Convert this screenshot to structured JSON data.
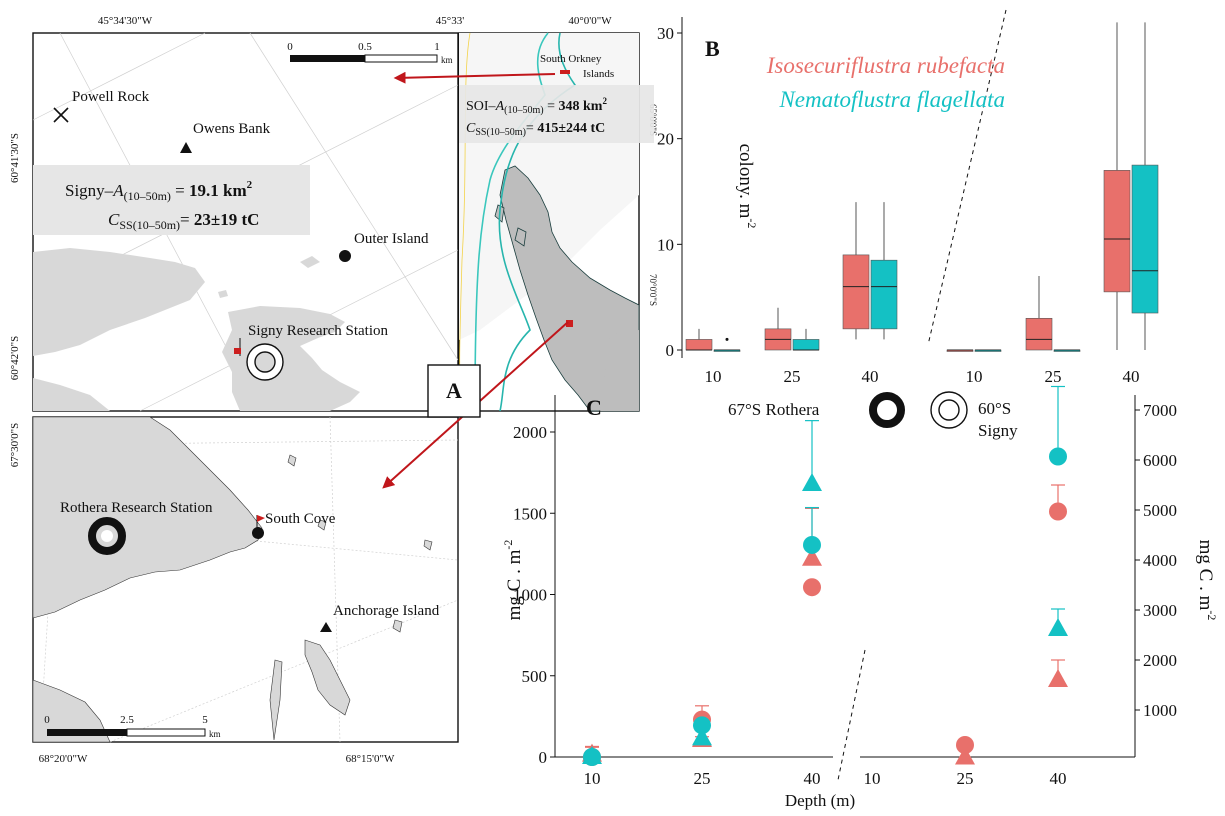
{
  "panel_labels": {
    "a": "A",
    "b": "B",
    "c": "C"
  },
  "colors": {
    "rubefacta": "#e8706b",
    "flagellata": "#14c1c4",
    "land": "#d8d8d8",
    "arrow": "#c0161b"
  },
  "map_signy": {
    "top_lon_left": "45°34'30\"W",
    "top_lon_right": "45°33'",
    "lat_upper": "60°41'30\"S",
    "lat_lower": "60°42'0\"S",
    "scalebar": {
      "ticks": [
        "0",
        "0.5",
        "1"
      ],
      "unit": "km"
    },
    "places": {
      "powell_rock": "Powell Rock",
      "owens_bank": "Owens Bank",
      "outer_island": "Outer Island",
      "signy_station": "Signy Research Station"
    },
    "info_box": {
      "area_prefix": "Signy–",
      "area_var": "A",
      "area_sub": "(10–50m)",
      "area_eq": " = ",
      "area_value": "19.1 km",
      "area_sup": "2",
      "carbon_var": "C",
      "carbon_sub": "SS(10–50m)",
      "carbon_eq": "= ",
      "carbon_value": "23±19 tC"
    }
  },
  "map_inset": {
    "top_lon": "40°0'0\"W",
    "lat_upper": "65°0'0\"S",
    "lat_lower": "70°0'0\"S",
    "south_orkney": [
      "South Orkney",
      "Islands"
    ],
    "info_box": {
      "area_prefix": "SOI–",
      "area_var": "A",
      "area_sub": "(10–50m)",
      "area_eq": " = ",
      "area_value": "348 km",
      "area_sup": "2",
      "carbon_var": "C",
      "carbon_sub": "SS(10–50m)",
      "carbon_eq": "= ",
      "carbon_value": "415±244 tC"
    }
  },
  "map_rothera": {
    "lat_label": "67°30'0\"S",
    "bottom_lon_left": "68°20'0\"W",
    "bottom_lon_right": "68°15'0\"W",
    "scalebar": {
      "ticks": [
        "0",
        "2.5",
        "5"
      ],
      "unit": "km"
    },
    "places": {
      "rothera_station": "Rothera Research Station",
      "south_cove": "South Cove",
      "anchorage": "Anchorage Island"
    }
  },
  "legend": {
    "species_1": "Isosecuriflustra rubefacta",
    "species_2": "Nematoflustra flagellata"
  },
  "site_legend": {
    "rothera": "67°S Rothera",
    "signy_lat": "60°S",
    "signy_name": "Signy"
  },
  "chart_data": [
    {
      "panel": "B",
      "type": "box",
      "ylabel": "colony. m",
      "ylabel_sup": "-2",
      "ylim": [
        0,
        31
      ],
      "yticks": [
        0,
        10,
        20,
        30
      ],
      "categories": [
        "10",
        "25",
        "40",
        "10",
        "25",
        "40"
      ],
      "groups": [
        {
          "site": "Rothera",
          "depths": [
            "10",
            "25",
            "40"
          ]
        },
        {
          "site": "Signy",
          "depths": [
            "10",
            "25",
            "40"
          ]
        }
      ],
      "series": [
        {
          "name": "Isosecuriflustra rubefacta",
          "boxes": [
            {
              "min": 0,
              "q1": 0,
              "median": 0,
              "q3": 1,
              "max": 2,
              "outliers": []
            },
            {
              "min": 0,
              "q1": 0,
              "median": 1,
              "q3": 2,
              "max": 4,
              "outliers": []
            },
            {
              "min": 1,
              "q1": 2,
              "median": 6,
              "q3": 9,
              "max": 14,
              "outliers": []
            },
            {
              "min": 0,
              "q1": 0,
              "median": 0,
              "q3": 0,
              "max": 0,
              "outliers": []
            },
            {
              "min": 0,
              "q1": 0,
              "median": 1,
              "q3": 3,
              "max": 7,
              "outliers": []
            },
            {
              "min": 0,
              "q1": 5.5,
              "median": 10.5,
              "q3": 17,
              "max": 31,
              "outliers": []
            }
          ]
        },
        {
          "name": "Nematoflustra flagellata",
          "boxes": [
            {
              "min": 0,
              "q1": 0,
              "median": 0,
              "q3": 0,
              "max": 0,
              "outliers": [
                1
              ]
            },
            {
              "min": 0,
              "q1": 0,
              "median": 0,
              "q3": 1,
              "max": 2,
              "outliers": []
            },
            {
              "min": 1,
              "q1": 2,
              "median": 6,
              "q3": 8.5,
              "max": 14,
              "outliers": []
            },
            {
              "min": 0,
              "q1": 0,
              "median": 0,
              "q3": 0,
              "max": 0,
              "outliers": []
            },
            {
              "min": 0,
              "q1": 0,
              "median": 0,
              "q3": 0,
              "max": 0,
              "outliers": []
            },
            {
              "min": 0,
              "q1": 3.5,
              "median": 7.5,
              "q3": 17.5,
              "max": 31,
              "outliers": []
            }
          ]
        }
      ]
    },
    {
      "panel": "C",
      "type": "scatter",
      "xlabel": "Depth (m)",
      "ylabel": "mg C . m",
      "ylabel_sup": "-2",
      "left_axis": {
        "site": "Rothera",
        "ylim": [
          0,
          2100
        ],
        "yticks": [
          0,
          500,
          1000,
          1500,
          2000
        ]
      },
      "right_axis": {
        "site": "Signy",
        "ylim": [
          0,
          7200
        ],
        "yticks": [
          1000,
          2000,
          3000,
          4000,
          5000,
          6000,
          7000
        ]
      },
      "xticks_rothera": [
        "10",
        "25",
        "40"
      ],
      "xticks_signy": [
        "10",
        "25",
        "40"
      ],
      "series": [
        {
          "name": "Isosecuriflustra rubefacta",
          "marker": "circle",
          "site": "Rothera",
          "points": [
            {
              "x": "10",
              "y": 0,
              "err": 60
            },
            {
              "x": "25",
              "y": 230,
              "err": 85
            },
            {
              "x": "40",
              "y": 1045,
              "err": 0
            }
          ]
        },
        {
          "name": "Isosecuriflustra rubefacta",
          "marker": "triangle",
          "site": "Rothera",
          "points": [
            {
              "x": "10",
              "y": 15,
              "err": 50
            },
            {
              "x": "25",
              "y": 105,
              "err": 20
            },
            {
              "x": "40",
              "y": 1220,
              "err": 310
            }
          ]
        },
        {
          "name": "Nematoflustra flagellata",
          "marker": "circle",
          "site": "Rothera",
          "points": [
            {
              "x": "10",
              "y": 0,
              "err": 0
            },
            {
              "x": "25",
              "y": 195,
              "err": 0
            },
            {
              "x": "40",
              "y": 1305,
              "err": 230
            }
          ]
        },
        {
          "name": "Nematoflustra flagellata",
          "marker": "triangle",
          "site": "Rothera",
          "points": [
            {
              "x": "10",
              "y": 0,
              "err": 0
            },
            {
              "x": "25",
              "y": 115,
              "err": 0
            },
            {
              "x": "40",
              "y": 1680,
              "err": 390
            }
          ]
        },
        {
          "name": "Isosecuriflustra rubefacta",
          "marker": "circle",
          "site": "Signy",
          "points": [
            {
              "x": "25",
              "y": 300,
              "err": 0
            },
            {
              "x": "40",
              "y": 4970,
              "err": 530
            }
          ]
        },
        {
          "name": "Isosecuriflustra rubefacta",
          "marker": "triangle",
          "site": "Signy",
          "points": [
            {
              "x": "25",
              "y": 50,
              "err": 0
            },
            {
              "x": "40",
              "y": 1600,
              "err": 400
            }
          ]
        },
        {
          "name": "Nematoflustra flagellata",
          "marker": "circle",
          "site": "Signy",
          "points": [
            {
              "x": "40",
              "y": 6070,
              "err": 1400
            }
          ]
        },
        {
          "name": "Nematoflustra flagellata",
          "marker": "triangle",
          "site": "Signy",
          "points": [
            {
              "x": "40",
              "y": 2620,
              "err": 400
            }
          ]
        }
      ]
    }
  ]
}
